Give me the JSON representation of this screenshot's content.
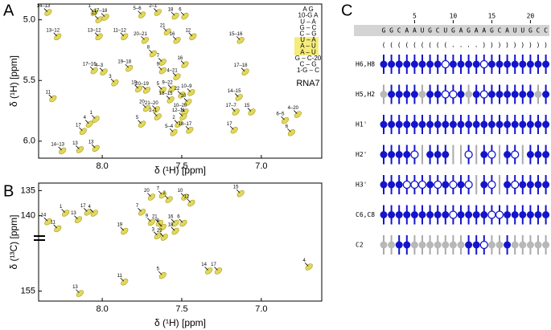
{
  "chart_data": [
    {
      "type": "scatter",
      "panel_label": "A",
      "x_label": "δ (¹H) [ppm]",
      "y_label": "δ (¹H) [ppm]",
      "xlim": [
        8.4,
        6.62
      ],
      "ylim": [
        6.14,
        4.87
      ],
      "xticks": [
        {
          "value": 8.0,
          "label": "8.0"
        },
        7.5,
        {
          "value": 7.0,
          "label": "7.0"
        }
      ],
      "yticks": [
        {
          "value": 5.0,
          "label": "5.0"
        },
        5.5,
        {
          "value": 6.0,
          "label": "6.0"
        }
      ],
      "color": "#e0d860",
      "x": [
        8.34,
        8.05,
        8.02,
        7.98,
        7.75,
        7.65,
        7.54,
        7.48,
        8.28,
        8.02,
        7.86,
        7.73,
        7.59,
        7.53,
        7.43,
        7.13,
        7.68,
        7.62,
        8.05,
        7.99,
        7.83,
        7.62,
        7.48,
        7.53,
        7.56,
        7.1,
        7.92,
        7.77,
        7.72,
        7.62,
        7.5,
        7.44,
        8.31,
        7.57,
        7.46,
        7.14,
        7.72,
        7.66,
        7.48,
        7.06,
        8.04,
        7.65,
        7.49,
        7.16,
        8.08,
        7.75,
        7.52,
        6.77,
        6.85,
        8.12,
        7.55,
        7.45,
        7.17,
        6.81,
        8.04,
        8.25,
        8.14
      ],
      "values": [
        4.94,
        4.94,
        5.0,
        4.98,
        4.96,
        4.94,
        4.97,
        4.97,
        5.14,
        5.14,
        5.14,
        5.17,
        5.1,
        5.17,
        5.14,
        5.17,
        5.28,
        5.35,
        5.42,
        5.43,
        5.4,
        5.42,
        5.37,
        5.47,
        5.57,
        5.43,
        5.52,
        5.57,
        5.58,
        5.58,
        5.62,
        5.6,
        5.65,
        5.66,
        5.68,
        5.64,
        5.73,
        5.74,
        5.76,
        5.76,
        5.82,
        5.8,
        5.8,
        5.76,
        5.86,
        5.86,
        5.86,
        5.78,
        5.83,
        5.92,
        5.93,
        5.91,
        5.91,
        5.93,
        6.06,
        6.08,
        6.07
      ],
      "point_labels": [
        "14–13",
        "1",
        "13",
        "17–18",
        "5–6",
        "2–1",
        "18",
        "6",
        "13–12",
        "13–12",
        "11–12",
        "20–21",
        "21",
        "16",
        "12",
        "15–16",
        "8",
        "7",
        "17–16",
        "4–3",
        "19–18",
        "9",
        "16",
        "4–21",
        "9–22",
        "17–18",
        "3",
        "19",
        "20–19",
        "5",
        "22",
        "10–9",
        "11",
        "18–15",
        "10",
        "14–15",
        "20",
        "21–20",
        "10–20",
        "15",
        "1",
        "2–1",
        "12–11",
        "17–7",
        "4",
        "5",
        "2",
        "4–20",
        "6–5",
        "17",
        "5–4",
        "18–17",
        "17",
        "6",
        "13",
        "14–13",
        "13"
      ],
      "inset": {
        "rows": [
          "A G",
          "10-G   A",
          "U – A",
          "G – C",
          "C – G",
          "U – A",
          "A – U",
          "A – U",
          "G – C-20",
          "C – G",
          "1-G – C"
        ],
        "highlighted_rows": [
          5,
          6,
          7
        ],
        "highlight_color": "#f5ec7a",
        "label": "RNA7"
      }
    },
    {
      "type": "scatter",
      "panel_label": "B",
      "x_label": "δ (¹H) [ppm]",
      "y_label": "δ (¹³C) [ppm]",
      "xlim": [
        8.4,
        6.62
      ],
      "ylim": [
        157,
        133.5
      ],
      "xticks": [
        {
          "value": 8.0,
          "label": "8.0"
        },
        7.5,
        {
          "value": 7.0,
          "label": "7.0"
        }
      ],
      "yticks": [
        135,
        140,
        155
      ],
      "color": "#e0d860",
      "x": [
        7.69,
        7.62,
        7.58,
        7.48,
        7.44,
        7.13,
        8.23,
        8.09,
        8.05,
        8.15,
        8.34,
        7.75,
        7.69,
        7.64,
        7.62,
        7.54,
        7.49,
        7.54,
        7.65,
        7.61,
        7.86,
        8.28,
        6.7,
        7.62,
        7.33,
        7.27,
        7.86,
        8.14
      ],
      "values": [
        136.3,
        135.9,
        136.8,
        136.3,
        137.5,
        135.6,
        139.5,
        139.3,
        139.5,
        140.8,
        141.2,
        139.3,
        141.3,
        141.5,
        142.3,
        141.5,
        141.5,
        143.1,
        144.0,
        144.3,
        143.1,
        142.6,
        150.2,
        151.9,
        151.0,
        151.0,
        153.2,
        155.5
      ],
      "point_labels": [
        "20",
        "7",
        "2",
        "10",
        "12",
        "15",
        "1",
        "17",
        "4",
        "13",
        "14",
        "7",
        "9",
        "21",
        "8",
        "16",
        "6",
        "18",
        "3",
        "22",
        "19",
        "11",
        "4",
        "5",
        "14",
        "17",
        "11",
        "13"
      ]
    },
    {
      "type": "dotmatrix",
      "panel_label": "C",
      "xticks": [
        5,
        10,
        15,
        20
      ],
      "sequence": [
        "G",
        "G",
        "C",
        "A",
        "A",
        "U",
        "G",
        "C",
        "U",
        "G",
        "A",
        "G",
        "A",
        "A",
        "G",
        "C",
        "A",
        "U",
        "U",
        "G",
        "C",
        "C"
      ],
      "structure": [
        "(",
        "(",
        "(",
        "(",
        "(",
        "(",
        "(",
        "(",
        "(",
        ".",
        ".",
        ".",
        ".",
        ")",
        ")",
        ")",
        ")",
        ")",
        ")",
        ")",
        ")",
        ")"
      ],
      "state_colors": {
        "filled": "#1414cc",
        "open": "#ffffff",
        "gray": "#b8b8b8"
      },
      "rows": [
        {
          "name": "H6,H8",
          "states": [
            "filled",
            "filled",
            "filled",
            "filled",
            "filled",
            "filled",
            "filled",
            "filled",
            "open",
            "filled",
            "filled",
            "filled",
            "filled",
            "open",
            "filled",
            "filled",
            "filled",
            "filled",
            "filled",
            "filled",
            "filled",
            "filled"
          ]
        },
        {
          "name": "H5,H2",
          "states": [
            "gray",
            "filled",
            "filled",
            "filled",
            "filled",
            "gray",
            "filled",
            "filled",
            "open",
            "open",
            "filled",
            "gray",
            "filled",
            "open",
            "filled",
            "filled",
            "filled",
            "filled",
            "filled",
            "filled",
            "gray",
            "filled"
          ]
        },
        {
          "name": "H1'",
          "states": [
            "filled",
            "filled",
            "filled",
            "filled",
            "filled",
            "filled",
            "filled",
            "filled",
            "filled",
            "filled",
            "filled",
            "filled",
            "filled",
            "filled",
            "filled",
            "filled",
            "filled",
            "filled",
            "filled",
            "filled",
            "filled",
            "filled"
          ]
        },
        {
          "name": "H2'",
          "states": [
            "filled",
            "filled",
            "filled",
            "filled",
            "open",
            "none",
            "filled",
            "filled",
            "filled",
            "none",
            "none",
            "open",
            "none",
            "filled",
            "open",
            "none",
            "filled",
            "open",
            "none",
            "filled",
            "filled",
            "filled"
          ]
        },
        {
          "name": "H3'",
          "states": [
            "filled",
            "filled",
            "filled",
            "open",
            "open",
            "open",
            "filled",
            "open",
            "filled",
            "open",
            "filled",
            "open",
            "none",
            "filled",
            "open",
            "none",
            "filled",
            "open",
            "filled",
            "filled",
            "filled",
            "filled"
          ]
        },
        {
          "name": "C6,C8",
          "states": [
            "filled",
            "filled",
            "filled",
            "filled",
            "filled",
            "filled",
            "filled",
            "filled",
            "filled",
            "open",
            "filled",
            "filled",
            "filled",
            "filled",
            "open",
            "open",
            "filled",
            "filled",
            "filled",
            "filled",
            "filled",
            "filled"
          ]
        },
        {
          "name": "C2",
          "states": [
            "gray",
            "gray",
            "filled",
            "filled",
            "gray",
            "gray",
            "gray",
            "gray",
            "gray",
            "gray",
            "gray",
            "filled",
            "filled",
            "open",
            "gray",
            "gray",
            "filled",
            "gray",
            "gray",
            "gray",
            "gray",
            "gray"
          ]
        }
      ]
    }
  ]
}
